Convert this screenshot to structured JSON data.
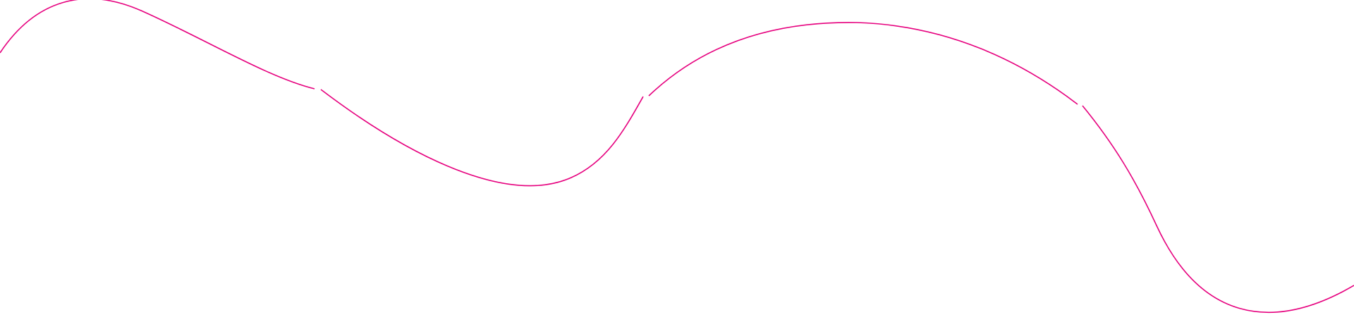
{
  "background_color": "#ffffff",
  "line_color": "#e6007e",
  "segments": [
    "wave-segment-1",
    "wave-segment-2",
    "wave-segment-3",
    "wave-segment-4"
  ]
}
